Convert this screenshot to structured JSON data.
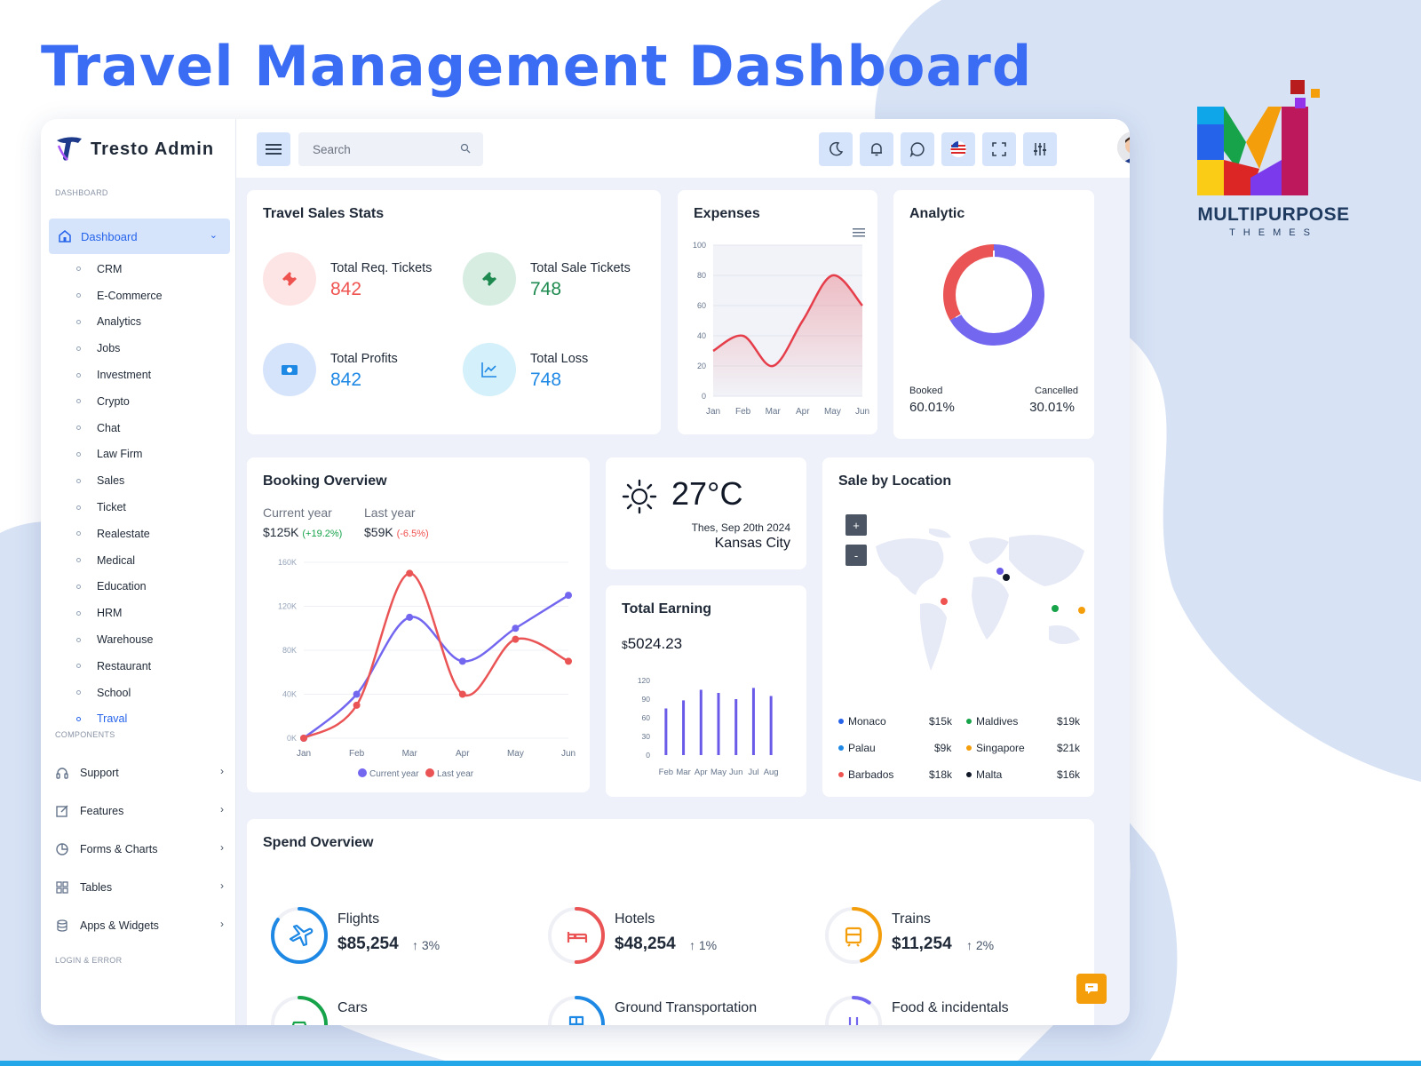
{
  "headline": "Travel Management Dashboard",
  "brand": {
    "line1": "MULTIPURPOSE",
    "line2": "THEMES"
  },
  "app": {
    "title": "Tresto Admin"
  },
  "search": {
    "placeholder": "Search"
  },
  "sidebar": {
    "section_dashboard": "DASHBOARD",
    "dashboard_label": "Dashboard",
    "items": [
      "CRM",
      "E-Commerce",
      "Analytics",
      "Jobs",
      "Investment",
      "Crypto",
      "Chat",
      "Law Firm",
      "Sales",
      "Ticket",
      "Realestate",
      "Medical",
      "Education",
      "HRM",
      "Warehouse",
      "Restaurant",
      "School",
      "Traval"
    ],
    "active_item": "Traval",
    "section_components": "COMPONENTS",
    "components": [
      "Support",
      "Features",
      "Forms & Charts",
      "Tables",
      "Apps & Widgets"
    ],
    "section_login": "LOGIN & ERROR"
  },
  "topbar_icons": [
    "moon-icon",
    "bell-icon",
    "chat-icon",
    "flag-icon",
    "fullscreen-icon",
    "settings-sliders-icon"
  ],
  "travel_sales": {
    "title": "Travel Sales Stats",
    "stats": [
      {
        "label": "Total Req. Tickets",
        "value": "842",
        "color": "#ef5350",
        "icon": "ticket-icon"
      },
      {
        "label": "Total Sale Tickets",
        "value": "748",
        "color": "#1e8a4f",
        "icon": "ticket-icon"
      },
      {
        "label": "Total Profits",
        "value": "842",
        "color": "#1e88e5",
        "icon": "money-icon"
      },
      {
        "label": "Total Loss",
        "value": "748",
        "color": "#1e88e5",
        "icon": "chart-icon"
      }
    ]
  },
  "expenses": {
    "title": "Expenses",
    "chart_data": {
      "type": "area",
      "categories": [
        "Jan",
        "Feb",
        "Mar",
        "Apr",
        "May",
        "Jun"
      ],
      "series": [
        {
          "values": [
            30,
            40,
            20,
            50,
            80,
            60
          ]
        }
      ],
      "ylim": [
        0,
        100
      ],
      "yticks": [
        "100",
        "80",
        "60",
        "40",
        "20",
        "0"
      ],
      "color": "#e53e4a"
    }
  },
  "analytic": {
    "title": "Analytic",
    "chart_data": {
      "type": "pie",
      "labels": [
        "Booked",
        "Cancelled"
      ],
      "values": [
        60.01,
        30.01
      ],
      "colors": [
        "#7367f0",
        "#ea5455"
      ]
    },
    "booked_label": "Booked",
    "booked_value": "60.01%",
    "cancelled_label": "Cancelled",
    "cancelled_value": "30.01%"
  },
  "booking": {
    "title": "Booking Overview",
    "current_label": "Current year",
    "current_value": "$125K",
    "current_change": "(+19.2%)",
    "last_label": "Last year",
    "last_value": "$59K",
    "last_change": "(-6.5%)",
    "chart_data": {
      "type": "line",
      "categories": [
        "Jan",
        "Feb",
        "Mar",
        "Apr",
        "May",
        "Jun"
      ],
      "yticks": [
        "160K",
        "120K",
        "80K",
        "40K",
        "0K"
      ],
      "ylim": [
        0,
        160000
      ],
      "series": [
        {
          "name": "Current year",
          "values": [
            0,
            40000,
            110000,
            70000,
            100000,
            130000
          ],
          "color": "#7367f0"
        },
        {
          "name": "Last year",
          "values": [
            0,
            30000,
            150000,
            40000,
            90000,
            70000
          ],
          "color": "#ea5455"
        }
      ]
    }
  },
  "weather": {
    "temp": "27°C",
    "date": "Thes, Sep 20th 2024",
    "city": "Kansas City"
  },
  "earning": {
    "title": "Total Earning",
    "currency": "$",
    "amount": "5024.23",
    "chart_data": {
      "type": "bar",
      "categories": [
        "Feb",
        "Mar",
        "Apr",
        "May",
        "Jun",
        "Jul",
        "Aug"
      ],
      "values": [
        75,
        88,
        105,
        100,
        90,
        108,
        95
      ],
      "ylim": [
        0,
        120
      ],
      "yticks": [
        "120",
        "90",
        "60",
        "30",
        "0"
      ],
      "color": "#6a5ae8"
    }
  },
  "location": {
    "title": "Sale by Location",
    "zoom_in": "+",
    "zoom_out": "-",
    "items": [
      {
        "name": "Monaco",
        "value": "$15k",
        "color": "#2563eb"
      },
      {
        "name": "Maldives",
        "value": "$19k",
        "color": "#16a34a"
      },
      {
        "name": "Palau",
        "value": "$9k",
        "color": "#1e88e5"
      },
      {
        "name": "Singapore",
        "value": "$21k",
        "color": "#f59e0b"
      },
      {
        "name": "Barbados",
        "value": "$18k",
        "color": "#ef5350"
      },
      {
        "name": "Malta",
        "value": "$16k",
        "color": "#111827"
      }
    ]
  },
  "spend": {
    "title": "Spend Overview",
    "items": [
      {
        "name": "Flights",
        "amount": "$85,254",
        "change": "3%",
        "color": "#1e88e5",
        "icon": "plane-icon",
        "percent": 85
      },
      {
        "name": "Hotels",
        "amount": "$48,254",
        "change": "1%",
        "color": "#ea5455",
        "icon": "bed-icon",
        "percent": 50
      },
      {
        "name": "Trains",
        "amount": "$11,254",
        "change": "2%",
        "color": "#f59e0b",
        "icon": "train-icon",
        "percent": 45
      },
      {
        "name": "Cars",
        "color": "#16a34a",
        "icon": "car-icon",
        "percent": 30
      },
      {
        "name": "Ground Transportation",
        "color": "#1e88e5",
        "icon": "bus-icon",
        "percent": 30
      },
      {
        "name": "Food & incidentals",
        "color": "#7367f0",
        "icon": "food-icon",
        "percent": 10
      }
    ]
  }
}
